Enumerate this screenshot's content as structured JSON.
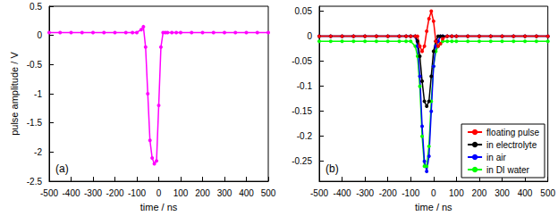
{
  "chart_data": [
    {
      "type": "line",
      "annotations": [
        "(a)"
      ],
      "x_label": "time / ns",
      "y_label": "pulse amplitude / V",
      "x": [
        -500,
        -450,
        -400,
        -350,
        -300,
        -250,
        -200,
        -150,
        -120,
        -100,
        -80,
        -70,
        -60,
        -50,
        -40,
        -30,
        -20,
        -10,
        0,
        10,
        20,
        30,
        40,
        60,
        80,
        100,
        150,
        200,
        250,
        300,
        350,
        400,
        450,
        500
      ],
      "values": [
        0.05,
        0.05,
        0.05,
        0.05,
        0.05,
        0.05,
        0.05,
        0.05,
        0.05,
        0.05,
        0.1,
        0.15,
        -0.2,
        -1.0,
        -1.8,
        -2.1,
        -2.2,
        -2.15,
        -1.2,
        -0.2,
        0.05,
        0.05,
        0.05,
        0.05,
        0.05,
        0.05,
        0.05,
        0.05,
        0.05,
        0.05,
        0.05,
        0.05,
        0.05,
        0.05
      ],
      "color": "#ff00ff",
      "marker": "circle",
      "xlim": [
        -500,
        500
      ],
      "xticks": [
        -500,
        -400,
        -300,
        -200,
        -100,
        0,
        100,
        200,
        300,
        400,
        500
      ],
      "ylim": [
        -2.5,
        0.5
      ],
      "yticks": [
        -2.5,
        -2,
        -1.5,
        -1,
        -0.5,
        0,
        0.5
      ],
      "grid": false
    },
    {
      "type": "line",
      "annotations": [
        "(b)"
      ],
      "x_label": "time / ns",
      "x": [
        -500,
        -450,
        -400,
        -350,
        -300,
        -250,
        -200,
        -150,
        -120,
        -100,
        -80,
        -70,
        -60,
        -50,
        -40,
        -30,
        -20,
        -10,
        0,
        10,
        20,
        30,
        40,
        60,
        80,
        100,
        150,
        200,
        250,
        300,
        350,
        400,
        450,
        500
      ],
      "series": [
        {
          "name": "floating pulse",
          "color": "#ff0000",
          "values": [
            0,
            0,
            0,
            0,
            0,
            0,
            0,
            0,
            0,
            0,
            0,
            0,
            -0.02,
            -0.03,
            -0.02,
            0.01,
            0.035,
            0.05,
            0.03,
            -0.01,
            -0.02,
            -0.015,
            -0.005,
            0,
            0,
            0,
            0,
            0,
            0,
            0,
            0,
            0,
            0,
            0
          ]
        },
        {
          "name": "in electrolyte",
          "color": "#000000",
          "values": [
            0,
            0,
            0,
            0,
            0,
            0,
            0,
            0,
            0,
            0,
            0,
            -0.01,
            -0.04,
            -0.09,
            -0.13,
            -0.14,
            -0.13,
            -0.08,
            -0.03,
            -0.01,
            0,
            0,
            0,
            0,
            0,
            0,
            0,
            0,
            0,
            0,
            0,
            0,
            0,
            0
          ]
        },
        {
          "name": "in air",
          "color": "#0000ff",
          "values": [
            0,
            0,
            0,
            0,
            0,
            0,
            0,
            0,
            0,
            0,
            0,
            -0.02,
            -0.08,
            -0.18,
            -0.25,
            -0.27,
            -0.24,
            -0.15,
            -0.06,
            -0.02,
            -0.01,
            0,
            0,
            0,
            0,
            0,
            0,
            0,
            0,
            0,
            0,
            0,
            0,
            0
          ]
        },
        {
          "name": "in DI water",
          "color": "#00ff00",
          "values": [
            -0.01,
            -0.01,
            -0.01,
            -0.01,
            -0.01,
            -0.01,
            -0.01,
            -0.01,
            -0.01,
            -0.01,
            -0.02,
            -0.04,
            -0.1,
            -0.2,
            -0.26,
            -0.26,
            -0.22,
            -0.13,
            -0.06,
            -0.03,
            -0.02,
            -0.015,
            -0.01,
            -0.01,
            -0.01,
            -0.01,
            -0.01,
            -0.01,
            -0.01,
            -0.01,
            -0.01,
            -0.01,
            -0.01,
            -0.01
          ]
        }
      ],
      "marker": "circle",
      "legend": "lower right",
      "xlim": [
        -500,
        500
      ],
      "xticks": [
        -500,
        -400,
        -300,
        -200,
        -100,
        0,
        100,
        200,
        300,
        400,
        500
      ],
      "ylim": [
        -0.29,
        0.06
      ],
      "yticks": [
        -0.25,
        -0.2,
        -0.15,
        -0.1,
        -0.05,
        0,
        0.05
      ],
      "grid": false
    }
  ]
}
